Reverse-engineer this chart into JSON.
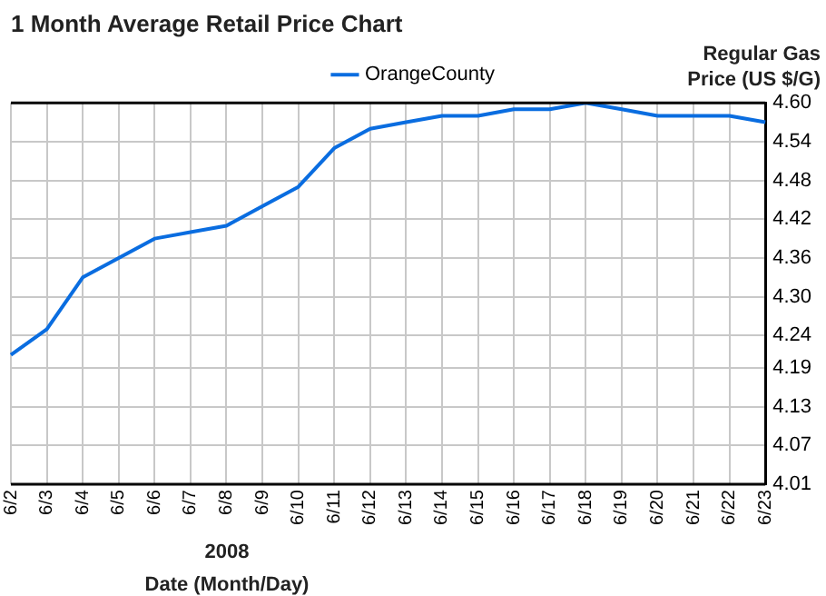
{
  "chart_data": {
    "type": "line",
    "title": "1 Month Average Retail Price Chart",
    "xlabel": "Date (Month/Day)",
    "ylabel": "Regular Gas Price (US $/G)",
    "annotations": [
      "2008"
    ],
    "categories": [
      "6/2",
      "6/3",
      "6/4",
      "6/5",
      "6/6",
      "6/7",
      "6/8",
      "6/9",
      "6/10",
      "6/11",
      "6/12",
      "6/13",
      "6/14",
      "6/15",
      "6/16",
      "6/17",
      "6/18",
      "6/19",
      "6/20",
      "6/21",
      "6/22",
      "6/23"
    ],
    "series": [
      {
        "name": "OrangeCounty",
        "color": "#0a6de0",
        "values": [
          4.21,
          4.25,
          4.33,
          4.36,
          4.39,
          4.4,
          4.41,
          4.44,
          4.47,
          4.53,
          4.56,
          4.57,
          4.58,
          4.58,
          4.59,
          4.59,
          4.6,
          4.59,
          4.58,
          4.58,
          4.58,
          4.57
        ]
      }
    ],
    "ylim": [
      4.01,
      4.6
    ],
    "yticks": [
      4.01,
      4.07,
      4.13,
      4.19,
      4.24,
      {
        "value": 4.3,
        "label": "4.30"
      },
      4.36,
      4.42,
      4.48,
      4.54,
      {
        "value": 4.6,
        "label": "4.60"
      }
    ],
    "grid": true,
    "legend": "top",
    "marker": "none",
    "line_style": "solid"
  }
}
